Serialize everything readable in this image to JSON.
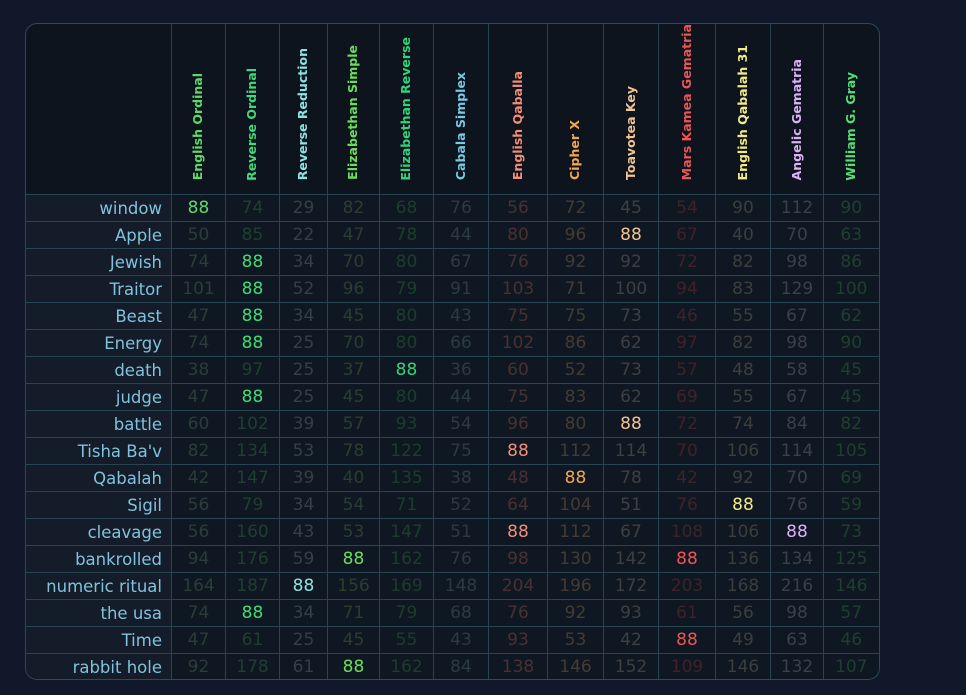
{
  "columns": [
    {
      "label": "English Ordinal",
      "color": "#5fd86a",
      "dim": "#2a3d37"
    },
    {
      "label": "Reverse Ordinal",
      "color": "#3ddc78",
      "dim": "#1f3f2f"
    },
    {
      "label": "Reverse Reduction",
      "color": "#8ee3e0",
      "dim": "#363e46"
    },
    {
      "label": "Elizabethan Simple",
      "color": "#6ade5a",
      "dim": "#2a3e2f"
    },
    {
      "label": "Elizabethan Reverse",
      "color": "#32d37a",
      "dim": "#1c3d2c"
    },
    {
      "label": "Cabala Simplex",
      "color": "#78c9e4",
      "dim": "#2c3a44"
    },
    {
      "label": "English Qaballa",
      "color": "#f08e76",
      "dim": "#4a3030"
    },
    {
      "label": "Cipher X",
      "color": "#f4a64c",
      "dim": "#443b33"
    },
    {
      "label": "Toavotea Key",
      "color": "#f2c292",
      "dim": "#3f3f42"
    },
    {
      "label": "Mars Kamea Gematria",
      "color": "#ec5555",
      "dim": "#3e2228"
    },
    {
      "label": "English Qabalah 31",
      "color": "#f2ea86",
      "dim": "#3c3e3c"
    },
    {
      "label": "Angelic Gematria",
      "color": "#dcb2f6",
      "dim": "#3d3e4e"
    },
    {
      "label": "William G. Gray",
      "color": "#58df74",
      "dim": "#1f3f2f"
    }
  ],
  "rows": [
    {
      "word": "window",
      "values": [
        88,
        74,
        29,
        82,
        68,
        76,
        56,
        72,
        45,
        54,
        90,
        112,
        90
      ],
      "highlight": [
        0
      ]
    },
    {
      "word": "Apple",
      "values": [
        50,
        85,
        22,
        47,
        78,
        44,
        80,
        96,
        88,
        67,
        40,
        70,
        63
      ],
      "highlight": [
        8
      ]
    },
    {
      "word": "Jewish",
      "values": [
        74,
        88,
        34,
        70,
        80,
        67,
        76,
        92,
        92,
        72,
        82,
        98,
        86
      ],
      "highlight": [
        1
      ]
    },
    {
      "word": "Traitor",
      "values": [
        101,
        88,
        52,
        96,
        79,
        91,
        103,
        71,
        100,
        94,
        83,
        129,
        100
      ],
      "highlight": [
        1
      ]
    },
    {
      "word": "Beast",
      "values": [
        47,
        88,
        34,
        45,
        80,
        43,
        75,
        75,
        73,
        46,
        55,
        67,
        62
      ],
      "highlight": [
        1
      ]
    },
    {
      "word": "Energy",
      "values": [
        74,
        88,
        25,
        70,
        80,
        66,
        102,
        86,
        62,
        97,
        82,
        98,
        90
      ],
      "highlight": [
        1
      ]
    },
    {
      "word": "death",
      "values": [
        38,
        97,
        25,
        37,
        88,
        36,
        60,
        52,
        73,
        57,
        48,
        58,
        45
      ],
      "highlight": [
        4
      ]
    },
    {
      "word": "judge",
      "values": [
        47,
        88,
        25,
        45,
        80,
        44,
        75,
        83,
        62,
        69,
        55,
        67,
        45
      ],
      "highlight": [
        1
      ]
    },
    {
      "word": "battle",
      "values": [
        60,
        102,
        39,
        57,
        93,
        54,
        96,
        80,
        88,
        72,
        74,
        84,
        82
      ],
      "highlight": [
        8
      ]
    },
    {
      "word": "Tisha Ba'v",
      "values": [
        82,
        134,
        53,
        78,
        122,
        75,
        88,
        112,
        114,
        70,
        106,
        114,
        105
      ],
      "highlight": [
        6
      ]
    },
    {
      "word": "Qabalah",
      "values": [
        42,
        147,
        39,
        40,
        135,
        38,
        48,
        88,
        78,
        42,
        92,
        70,
        69
      ],
      "highlight": [
        7
      ]
    },
    {
      "word": "Sigil",
      "values": [
        56,
        79,
        34,
        54,
        71,
        52,
        64,
        104,
        51,
        76,
        88,
        76,
        59
      ],
      "highlight": [
        10
      ]
    },
    {
      "word": "cleavage",
      "values": [
        56,
        160,
        43,
        53,
        147,
        51,
        88,
        112,
        67,
        108,
        106,
        88,
        73
      ],
      "highlight": [
        6,
        11
      ]
    },
    {
      "word": "bankrolled",
      "values": [
        94,
        176,
        59,
        88,
        162,
        76,
        98,
        130,
        142,
        88,
        136,
        134,
        125
      ],
      "highlight": [
        3,
        9
      ]
    },
    {
      "word": "numeric ritual",
      "values": [
        164,
        187,
        88,
        156,
        169,
        148,
        204,
        196,
        172,
        203,
        168,
        216,
        146
      ],
      "highlight": [
        2
      ]
    },
    {
      "word": "the usa",
      "values": [
        74,
        88,
        34,
        71,
        79,
        68,
        76,
        92,
        93,
        61,
        56,
        98,
        57
      ],
      "highlight": [
        1
      ]
    },
    {
      "word": "Time",
      "values": [
        47,
        61,
        25,
        45,
        55,
        43,
        93,
        53,
        42,
        88,
        49,
        63,
        46
      ],
      "highlight": [
        9
      ]
    },
    {
      "word": "rabbit hole",
      "values": [
        92,
        178,
        61,
        88,
        162,
        84,
        138,
        146,
        152,
        109,
        146,
        132,
        107
      ],
      "highlight": [
        3
      ]
    }
  ]
}
